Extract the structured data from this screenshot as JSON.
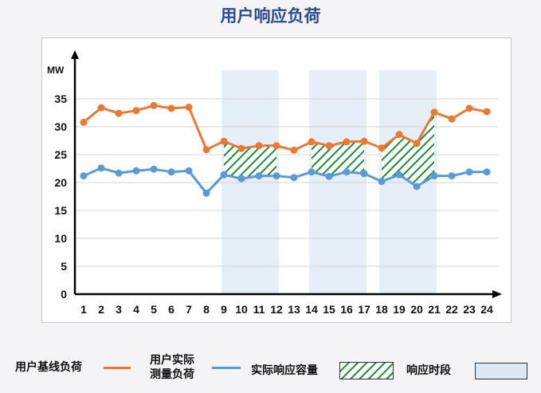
{
  "title": "用户响应负荷",
  "colors": {
    "baseline": "#ea7a33",
    "measured": "#5a9bd5",
    "response_period_fill": "#e6eef8",
    "response_capacity_hatch": "#1f8a3a"
  },
  "legend": {
    "baseline_label": "用户基线负荷",
    "measured_label_line1": "用户实际",
    "measured_label_line2": "测量负荷",
    "capacity_label": "实际响应容量",
    "period_label": "响应时段"
  },
  "chart_data": {
    "type": "line",
    "title": "用户响应负荷",
    "xlabel": "",
    "ylabel": "MW",
    "x": [
      1,
      2,
      3,
      4,
      5,
      6,
      7,
      8,
      9,
      10,
      11,
      12,
      13,
      14,
      15,
      16,
      17,
      18,
      19,
      20,
      21,
      22,
      23,
      24
    ],
    "ylim": [
      0,
      40
    ],
    "yticks": [
      0,
      5,
      10,
      15,
      20,
      25,
      30,
      35
    ],
    "grid": true,
    "series": [
      {
        "name": "用户基线负荷",
        "values": [
          30.8,
          33.4,
          32.4,
          32.9,
          33.8,
          33.3,
          33.5,
          25.9,
          27.4,
          26.1,
          26.6,
          26.6,
          25.8,
          27.3,
          26.6,
          27.3,
          27.4,
          26.2,
          28.6,
          27.0,
          32.6,
          31.4,
          33.3,
          32.7
        ]
      },
      {
        "name": "用户实际测量负荷",
        "values": [
          21.2,
          22.6,
          21.7,
          22.1,
          22.4,
          21.9,
          22.1,
          18.1,
          21.4,
          20.7,
          21.2,
          21.2,
          20.9,
          21.9,
          21.1,
          21.9,
          21.6,
          20.2,
          21.4,
          19.3,
          21.2,
          21.2,
          21.9,
          21.9
        ]
      }
    ],
    "response_periods": [
      [
        9,
        12
      ],
      [
        14,
        17
      ],
      [
        18,
        21
      ]
    ]
  }
}
